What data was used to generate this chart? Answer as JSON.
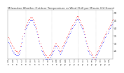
{
  "title": "Milwaukee Weather Outdoor Temperature vs Wind Chill per Minute (24 Hours)",
  "title_fontsize": 2.8,
  "bg_color": "#ffffff",
  "plot_bg_color": "#ffffff",
  "temp_color": "#ff0000",
  "wind_chill_color": "#0000ff",
  "xlabel_fontsize": 1.8,
  "ylabel_fontsize": 2.2,
  "ylim": [
    20,
    52
  ],
  "yticks": [
    25,
    30,
    35,
    40,
    45,
    50
  ],
  "temp_data": [
    34,
    33,
    32,
    31,
    30,
    29,
    28,
    27,
    27,
    26,
    26,
    25,
    25,
    24,
    24,
    25,
    26,
    28,
    30,
    33,
    35,
    37,
    39,
    41,
    42,
    43,
    44,
    45,
    46,
    46,
    47,
    47,
    47,
    47,
    46,
    45,
    44,
    43,
    41,
    40,
    38,
    36,
    34,
    32,
    30,
    28,
    27,
    26,
    25,
    24,
    23,
    22,
    22,
    21,
    21,
    21,
    22,
    22,
    23,
    24,
    25,
    26,
    27,
    28,
    29,
    30,
    30,
    29,
    28,
    27,
    26,
    25,
    26,
    27,
    28,
    29,
    30,
    31,
    32,
    33,
    34,
    35,
    36,
    37,
    38,
    39,
    40,
    41,
    42,
    43,
    44,
    45,
    46,
    47,
    48,
    48,
    47,
    46,
    45,
    44,
    43,
    42,
    41,
    40,
    38,
    36,
    34,
    32,
    30,
    28,
    27,
    26,
    25,
    24,
    23,
    22,
    21,
    20,
    21,
    22,
    23,
    24,
    25,
    26,
    27,
    28,
    29,
    30,
    31,
    32,
    33,
    34,
    35,
    36,
    37,
    38,
    39,
    40,
    41,
    42,
    43,
    44,
    45,
    46
  ],
  "wind_chill_data": [
    31,
    30,
    29,
    28,
    27,
    26,
    25,
    24,
    24,
    23,
    23,
    22,
    22,
    22,
    22,
    23,
    24,
    26,
    28,
    31,
    33,
    35,
    37,
    39,
    40,
    41,
    42,
    43,
    44,
    44,
    45,
    45,
    45,
    45,
    44,
    43,
    42,
    41,
    39,
    38,
    36,
    34,
    32,
    30,
    28,
    26,
    25,
    24,
    23,
    22,
    21,
    20,
    20,
    20,
    19,
    19,
    20,
    20,
    21,
    22,
    23,
    24,
    25,
    26,
    27,
    28,
    28,
    27,
    26,
    25,
    24,
    23,
    24,
    25,
    26,
    27,
    28,
    29,
    30,
    31,
    32,
    33,
    34,
    35,
    36,
    37,
    38,
    39,
    40,
    41,
    42,
    43,
    44,
    45,
    46,
    46,
    45,
    44,
    43,
    42,
    41,
    40,
    39,
    38,
    36,
    34,
    32,
    30,
    28,
    26,
    25,
    24,
    23,
    22,
    21,
    20,
    19,
    18,
    19,
    20,
    21,
    22,
    23,
    24,
    25,
    26,
    27,
    28,
    29,
    30,
    31,
    32,
    33,
    34,
    35,
    36,
    37,
    38,
    39,
    40,
    41,
    42,
    43,
    44
  ],
  "n_points": 144,
  "marker_size": 0.5,
  "vline_color": "#aaaaaa",
  "vline_positions": [
    24,
    60,
    96,
    120
  ],
  "xtick_every": 6,
  "xtick_labels": [
    "11",
    "12",
    "1",
    "2",
    "3",
    "4",
    "5",
    "6",
    "7",
    "8",
    "9",
    "10",
    "11",
    "12",
    "1",
    "2",
    "3",
    "4",
    "5",
    "6",
    "7",
    "8",
    "9",
    "10"
  ]
}
